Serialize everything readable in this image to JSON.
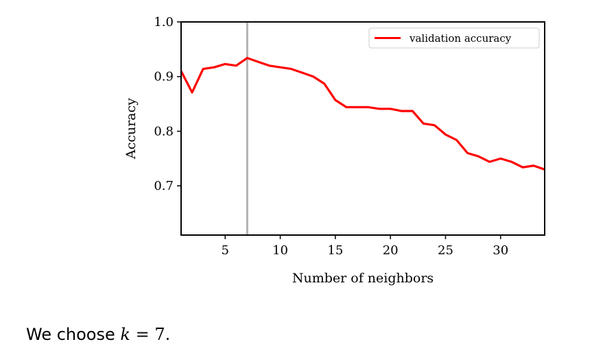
{
  "chart_data": {
    "type": "line",
    "title": "",
    "xlabel": "Number of neighbors",
    "ylabel": "Accuracy",
    "xlim": [
      1,
      34
    ],
    "ylim": [
      0.61,
      1.0
    ],
    "xticks": [
      5,
      10,
      15,
      20,
      25,
      30
    ],
    "yticks": [
      0.7,
      0.8,
      0.9,
      1.0
    ],
    "xtick_labels": [
      "5",
      "10",
      "15",
      "20",
      "25",
      "30"
    ],
    "ytick_labels": [
      "0.7",
      "0.8",
      "0.9",
      "1.0"
    ],
    "grid": false,
    "legend_position": "top-right",
    "series": [
      {
        "name": "validation accuracy",
        "color": "#ff0000",
        "x": [
          1,
          2,
          3,
          4,
          5,
          6,
          7,
          8,
          9,
          10,
          11,
          12,
          13,
          14,
          15,
          16,
          17,
          18,
          19,
          20,
          21,
          22,
          23,
          24,
          25,
          26,
          27,
          28,
          29,
          30,
          31,
          32,
          33,
          34
        ],
        "y": [
          0.91,
          0.871,
          0.914,
          0.917,
          0.923,
          0.92,
          0.934,
          0.927,
          0.92,
          0.917,
          0.914,
          0.907,
          0.9,
          0.887,
          0.857,
          0.844,
          0.844,
          0.844,
          0.841,
          0.841,
          0.837,
          0.837,
          0.814,
          0.811,
          0.794,
          0.784,
          0.76,
          0.754,
          0.744,
          0.75,
          0.744,
          0.734,
          0.737,
          0.73
        ]
      }
    ],
    "annotations": [
      {
        "type": "vline",
        "x": 7,
        "color": "#b3b3b3"
      }
    ]
  },
  "caption": {
    "prefix": "We choose ",
    "variable": "k",
    "operator": " = ",
    "value": "7",
    "suffix": "."
  }
}
